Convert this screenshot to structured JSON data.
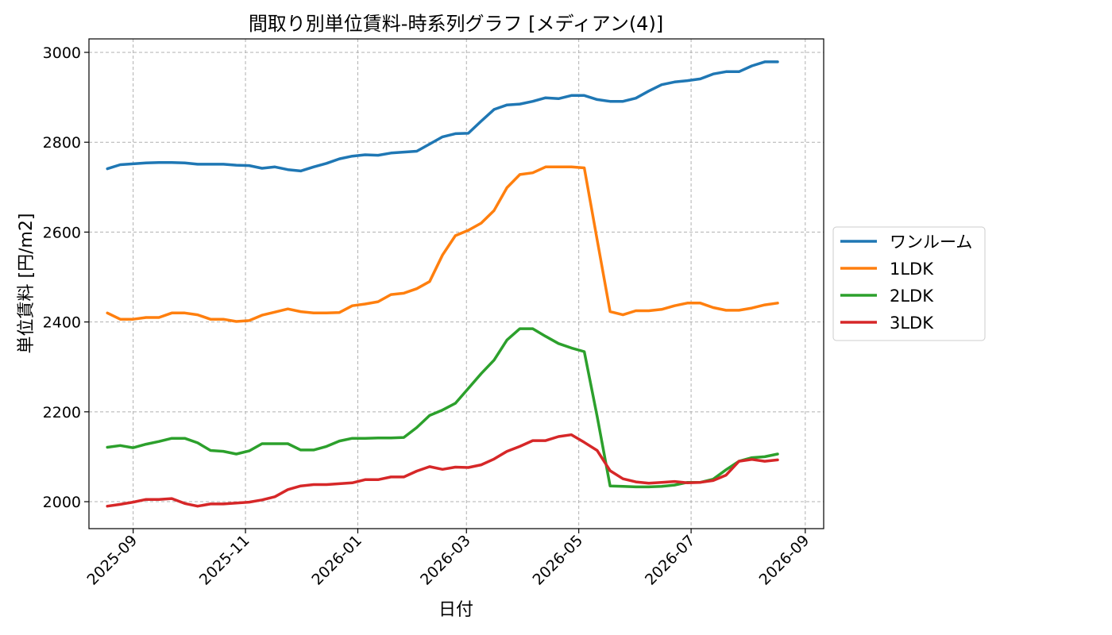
{
  "chart_data": {
    "type": "line",
    "title": "間取り別単位賃料-時系列グラフ [メディアン(4)]",
    "xlabel": "日付",
    "ylabel": "単位賃料 [円/m2]",
    "ylim": [
      1940,
      3030
    ],
    "yticks": [
      2000,
      2200,
      2400,
      2600,
      2800,
      3000
    ],
    "xlim": [
      "2025-08-08",
      "2026-09-11"
    ],
    "xticks": [
      "2025-09",
      "2025-11",
      "2026-01",
      "2026-03",
      "2026-05",
      "2026-07",
      "2026-09"
    ],
    "grid": true,
    "legend_position": "center-right (outside)",
    "x": [
      "2025-08-18",
      "2025-08-25",
      "2025-09-01",
      "2025-09-08",
      "2025-09-15",
      "2025-09-22",
      "2025-09-29",
      "2025-10-06",
      "2025-10-13",
      "2025-10-20",
      "2025-10-27",
      "2025-11-03",
      "2025-11-10",
      "2025-11-17",
      "2025-11-24",
      "2025-12-01",
      "2025-12-08",
      "2025-12-15",
      "2025-12-22",
      "2025-12-29",
      "2026-01-05",
      "2026-01-12",
      "2026-01-19",
      "2026-01-26",
      "2026-02-02",
      "2026-02-09",
      "2026-02-16",
      "2026-02-23",
      "2026-03-02",
      "2026-03-09",
      "2026-03-16",
      "2026-03-23",
      "2026-03-30",
      "2026-04-06",
      "2026-04-13",
      "2026-04-20",
      "2026-04-27",
      "2026-05-04",
      "2026-05-11",
      "2026-05-18",
      "2026-05-25",
      "2026-06-01",
      "2026-06-08",
      "2026-06-15",
      "2026-06-22",
      "2026-06-29",
      "2026-07-06",
      "2026-07-13",
      "2026-07-20",
      "2026-07-27",
      "2026-08-03",
      "2026-08-10",
      "2026-08-17"
    ],
    "series": [
      {
        "name": "ワンルーム",
        "color": "#1f77b4",
        "values": [
          2741,
          2750,
          2752,
          2754,
          2755,
          2755,
          2754,
          2751,
          2751,
          2751,
          2749,
          2748,
          2742,
          2745,
          2739,
          2736,
          2745,
          2753,
          2763,
          2769,
          2772,
          2771,
          2776,
          2778,
          2780,
          2796,
          2812,
          2819,
          2820,
          2847,
          2873,
          2883,
          2885,
          2891,
          2899,
          2897,
          2904,
          2904,
          2895,
          2891,
          2891,
          2898,
          2914,
          2928,
          2934,
          2937,
          2941,
          2952,
          2957,
          2957,
          2970,
          2979,
          2979
        ]
      },
      {
        "name": "1LDK",
        "color": "#ff7f0e",
        "values": [
          2420,
          2406,
          2406,
          2410,
          2410,
          2420,
          2420,
          2416,
          2406,
          2406,
          2401,
          2403,
          2415,
          2422,
          2429,
          2423,
          2420,
          2420,
          2421,
          2436,
          2440,
          2445,
          2461,
          2464,
          2474,
          2490,
          2549,
          2592,
          2604,
          2620,
          2648,
          2699,
          2728,
          2732,
          2745,
          2745,
          2745,
          2743,
          2583,
          2423,
          2416,
          2425,
          2425,
          2428,
          2436,
          2442,
          2442,
          2432,
          2426,
          2426,
          2431,
          2438,
          2442
        ]
      },
      {
        "name": "2LDK",
        "color": "#2ca02c",
        "values": [
          2121,
          2125,
          2120,
          2128,
          2134,
          2141,
          2141,
          2131,
          2114,
          2112,
          2106,
          2113,
          2129,
          2129,
          2129,
          2115,
          2115,
          2123,
          2135,
          2141,
          2141,
          2142,
          2142,
          2143,
          2165,
          2192,
          2204,
          2219,
          2252,
          2285,
          2315,
          2360,
          2385,
          2385,
          2368,
          2352,
          2342,
          2334,
          2190,
          2035,
          2034,
          2033,
          2033,
          2034,
          2037,
          2043,
          2043,
          2050,
          2071,
          2090,
          2098,
          2100,
          2106
        ]
      },
      {
        "name": "3LDK",
        "color": "#d62728",
        "values": [
          1990,
          1994,
          1999,
          2005,
          2005,
          2007,
          1996,
          1990,
          1995,
          1995,
          1997,
          1999,
          2004,
          2011,
          2027,
          2035,
          2038,
          2038,
          2040,
          2042,
          2049,
          2049,
          2055,
          2055,
          2068,
          2078,
          2072,
          2077,
          2076,
          2082,
          2095,
          2112,
          2123,
          2136,
          2136,
          2145,
          2149,
          2132,
          2114,
          2069,
          2051,
          2044,
          2041,
          2043,
          2045,
          2042,
          2043,
          2047,
          2059,
          2090,
          2094,
          2090,
          2093
        ]
      }
    ]
  }
}
